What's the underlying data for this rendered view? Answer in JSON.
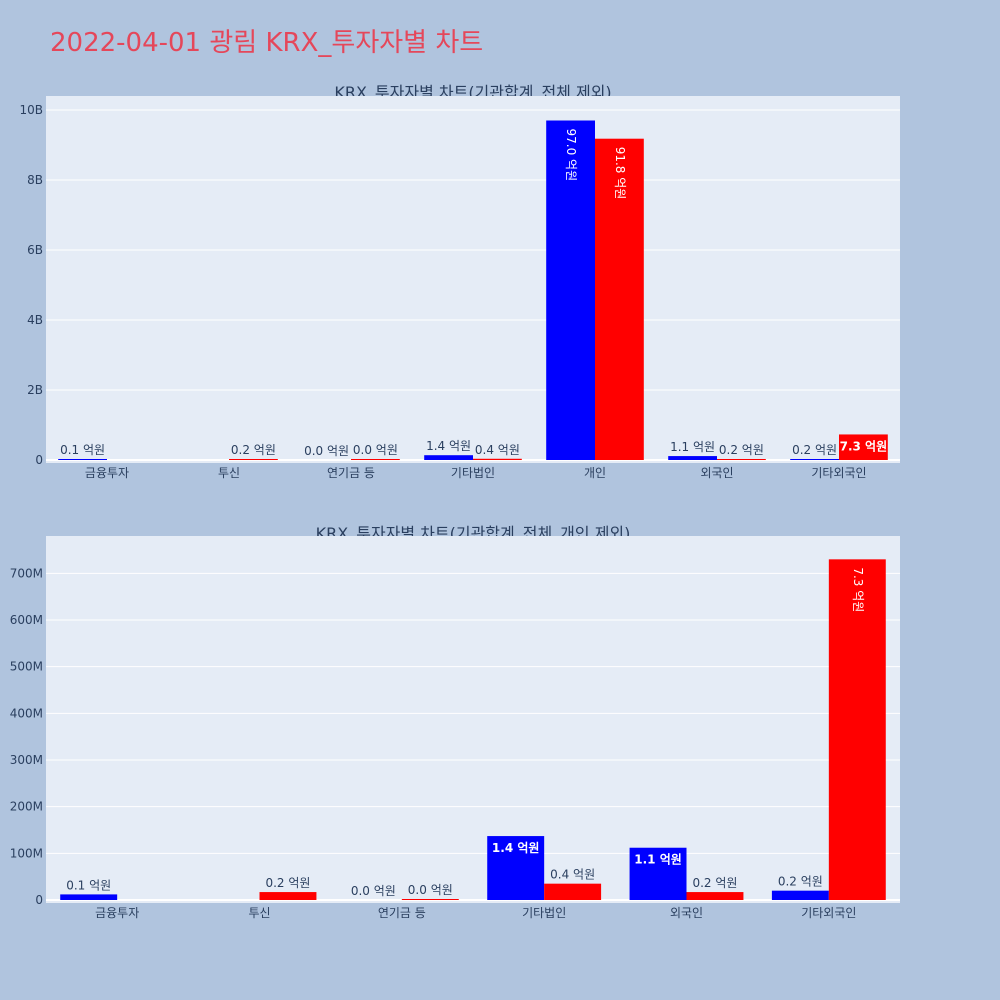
{
  "page": {
    "title": "2022-04-01 광림 KRX_투자자별 차트"
  },
  "colors": {
    "buy": "#0000ff",
    "sell": "#ff0000",
    "plot_bg": "#e5ecf6",
    "page_bg": "#b0c4de",
    "title": "#e5475a"
  },
  "chart_data": [
    {
      "type": "bar",
      "title": "KRX_투자자별 차트(기관합계_전체 제외)",
      "categories": [
        "금융투자",
        "투신",
        "연기금 등",
        "기타법인",
        "개인",
        "외국인",
        "기타외국인"
      ],
      "series": [
        {
          "values": [
            12000000,
            0,
            0,
            137000000,
            9700000000,
            112000000,
            20000000
          ],
          "labels": [
            "0.1 억원",
            "",
            "0.0 억원",
            "1.4 억원",
            "97.0 억원",
            "1.1 억원",
            "0.2 억원"
          ]
        },
        {
          "values": [
            0,
            17000000,
            1000000,
            35000000,
            9180000000,
            17000000,
            730000000
          ],
          "labels": [
            "",
            "0.2 억원",
            "0.0 억원",
            "0.4 억원",
            "91.8 억원",
            "0.2 억원",
            "7.3 억원"
          ]
        }
      ],
      "ylim": [
        0,
        10400000000
      ],
      "yticks": [
        {
          "v": 0,
          "label": "0"
        },
        {
          "v": 2000000000,
          "label": "2B"
        },
        {
          "v": 4000000000,
          "label": "4B"
        },
        {
          "v": 6000000000,
          "label": "6B"
        },
        {
          "v": 8000000000,
          "label": "8B"
        },
        {
          "v": 10000000000,
          "label": "10B"
        }
      ],
      "grid": true,
      "legend": "none"
    },
    {
      "type": "bar",
      "title": "KRX_투자자별 차트(기관합계_전체_개인 제외)",
      "categories": [
        "금융투자",
        "투신",
        "연기금 등",
        "기타법인",
        "외국인",
        "기타외국인"
      ],
      "series": [
        {
          "values": [
            12000000,
            0,
            0,
            137000000,
            112000000,
            20000000
          ],
          "labels": [
            "0.1 억원",
            "",
            "0.0 억원",
            "1.4 억원",
            "1.1 억원",
            "0.2 억원"
          ]
        },
        {
          "values": [
            0,
            17000000,
            1000000,
            35000000,
            17000000,
            730000000
          ],
          "labels": [
            "",
            "0.2 억원",
            "0.0 억원",
            "0.4 억원",
            "0.2 억원",
            "7.3 억원"
          ]
        }
      ],
      "ylim": [
        0,
        780000000
      ],
      "yticks": [
        {
          "v": 0,
          "label": "0"
        },
        {
          "v": 100000000,
          "label": "100M"
        },
        {
          "v": 200000000,
          "label": "200M"
        },
        {
          "v": 300000000,
          "label": "300M"
        },
        {
          "v": 400000000,
          "label": "400M"
        },
        {
          "v": 500000000,
          "label": "500M"
        },
        {
          "v": 600000000,
          "label": "600M"
        },
        {
          "v": 700000000,
          "label": "700M"
        }
      ],
      "grid": true,
      "legend": "none"
    }
  ]
}
